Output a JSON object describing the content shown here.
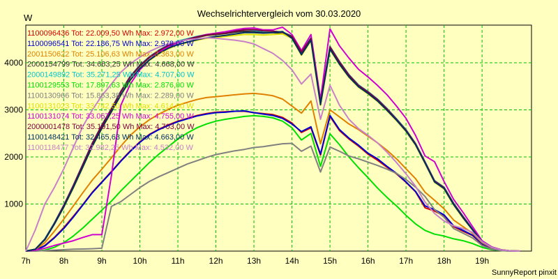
{
  "chart_data": {
    "type": "line",
    "title": "Wechselrichtervergleich vom 30.03.2020",
    "ylabel": "W",
    "xlabel": "",
    "footer": "SunnyReport pinxit",
    "grid": true,
    "legend_position": "top-left",
    "xlim": [
      7,
      20.3
    ],
    "ylim": [
      0,
      4800
    ],
    "x_ticks": [
      7,
      8,
      9,
      10,
      11,
      12,
      13,
      14,
      15,
      16,
      17,
      18,
      19
    ],
    "x_tick_labels": [
      "7h",
      "8h",
      "9h",
      "10h",
      "11h",
      "12h",
      "13h",
      "14h",
      "15h",
      "16h",
      "17h",
      "18h",
      "19h"
    ],
    "y_ticks": [
      1000,
      2000,
      3000,
      4000
    ],
    "x": [
      7,
      7.25,
      7.5,
      7.75,
      8,
      8.25,
      8.5,
      8.75,
      9,
      9.25,
      9.5,
      9.75,
      10,
      10.25,
      10.5,
      10.75,
      11,
      11.25,
      11.5,
      11.75,
      12,
      12.25,
      12.5,
      12.75,
      13,
      13.25,
      13.5,
      13.75,
      14,
      14.25,
      14.5,
      14.75,
      15,
      15.25,
      15.5,
      15.75,
      16,
      16.25,
      16.5,
      16.75,
      17,
      17.25,
      17.5,
      17.75,
      18,
      18.25,
      18.5,
      18.75,
      19,
      19.25,
      19.5,
      19.75,
      20
    ],
    "series": [
      {
        "name": "1100096436",
        "legend": "1100096436 Tot: 22.009,50 Wh Max: 2.972,00 W",
        "color": "#d00000",
        "values": [
          0,
          20,
          120,
          290,
          500,
          740,
          990,
          1250,
          1470,
          1690,
          1920,
          2130,
          2320,
          2480,
          2590,
          2680,
          2760,
          2820,
          2880,
          2920,
          2950,
          2960,
          2970,
          2970,
          2940,
          2920,
          2900,
          2840,
          2720,
          2520,
          2620,
          2040,
          2860,
          2560,
          2380,
          2230,
          2060,
          1930,
          1780,
          1640,
          1460,
          1260,
          920,
          850,
          750,
          520,
          420,
          330,
          150,
          60,
          20,
          5,
          0
        ]
      },
      {
        "name": "1100096541",
        "legend": "1100096541 Tot: 22.186,75 Wh Max: 2.978,00 W",
        "color": "#0000d0",
        "values": [
          0,
          20,
          110,
          280,
          480,
          720,
          980,
          1240,
          1460,
          1680,
          1910,
          2120,
          2310,
          2470,
          2580,
          2670,
          2750,
          2810,
          2870,
          2910,
          2940,
          2950,
          2970,
          2978,
          2940,
          2910,
          2880,
          2820,
          2700,
          2540,
          2640,
          2060,
          2880,
          2580,
          2400,
          2250,
          2080,
          1960,
          1800,
          1650,
          1470,
          1270,
          960,
          880,
          770,
          540,
          440,
          340,
          160,
          60,
          20,
          5,
          0
        ]
      },
      {
        "name": "2001150622",
        "legend": "2001150622 Tot: 25.106,63 Wh Max: 3.363,00 W",
        "color": "#e08000",
        "values": [
          0,
          30,
          180,
          420,
          680,
          960,
          1240,
          1510,
          1740,
          1980,
          2230,
          2460,
          2640,
          2790,
          2910,
          3010,
          3100,
          3160,
          3220,
          3260,
          3280,
          3300,
          3320,
          3340,
          3350,
          3330,
          3300,
          3230,
          3080,
          2930,
          3190,
          2280,
          3000,
          2850,
          2700,
          2580,
          2440,
          2300,
          2140,
          1960,
          1750,
          1540,
          1250,
          1080,
          900,
          660,
          520,
          380,
          180,
          70,
          25,
          5,
          0
        ]
      },
      {
        "name": "2000154799",
        "legend": "2000154799 Tot: 34.663,25 Wh Max: 4.668,00 W",
        "color": "#303030",
        "values": [
          0,
          40,
          250,
          590,
          960,
          1380,
          1830,
          2280,
          2660,
          3010,
          3380,
          3700,
          3930,
          4110,
          4250,
          4360,
          4440,
          4490,
          4540,
          4580,
          4600,
          4620,
          4650,
          4668,
          4660,
          4640,
          4640,
          4620,
          4540,
          4210,
          4500,
          3140,
          4320,
          4000,
          3720,
          3500,
          3360,
          3200,
          3000,
          2790,
          2560,
          2270,
          1880,
          1480,
          1340,
          1000,
          720,
          460,
          200,
          80,
          25,
          5,
          0
        ]
      },
      {
        "name": "2000149892",
        "legend": "2000149892 Tot: 35.271,25 Wh Max: 4.707,00 W",
        "color": "#00c8c8",
        "values": [
          0,
          40,
          260,
          600,
          980,
          1400,
          1850,
          2300,
          2680,
          3030,
          3400,
          3720,
          3950,
          4130,
          4270,
          4380,
          4460,
          4510,
          4560,
          4600,
          4620,
          4640,
          4680,
          4707,
          4690,
          4670,
          4670,
          4650,
          4570,
          4240,
          4530,
          3160,
          4350,
          4030,
          3750,
          3530,
          3390,
          3230,
          3030,
          2810,
          2580,
          2290,
          1900,
          1500,
          1360,
          1020,
          740,
          470,
          210,
          80,
          25,
          5,
          0
        ]
      },
      {
        "name": "1100129553",
        "legend": "1100129553 Tot: 17.897,63 Wh Max: 2.876,00 W",
        "color": "#00e000",
        "values": [
          0,
          0,
          20,
          80,
          180,
          320,
          490,
          680,
          870,
          1060,
          1280,
          1480,
          1680,
          1880,
          2060,
          2220,
          2380,
          2510,
          2620,
          2700,
          2760,
          2800,
          2830,
          2860,
          2876,
          2860,
          2830,
          2760,
          2620,
          2360,
          2500,
          1800,
          2490,
          2260,
          2000,
          1770,
          1560,
          1340,
          1140,
          960,
          760,
          580,
          440,
          360,
          320,
          260,
          220,
          160,
          80,
          30,
          10,
          0,
          0
        ]
      },
      {
        "name": "1100130966",
        "legend": "1100130966 Tot: 15.863,38 Wh Max: 2.289,00 W",
        "color": "#808080",
        "values": [
          0,
          0,
          10,
          20,
          30,
          40,
          45,
          50,
          60,
          950,
          1050,
          1200,
          1350,
          1480,
          1580,
          1670,
          1760,
          1850,
          1920,
          1990,
          2050,
          2090,
          2130,
          2160,
          2200,
          2220,
          2250,
          2280,
          2289,
          2120,
          2230,
          1680,
          2210,
          2120,
          2020,
          1960,
          1890,
          1820,
          1740,
          1650,
          1520,
          1360,
          1160,
          880,
          720,
          480,
          380,
          280,
          120,
          40,
          10,
          0,
          0
        ]
      },
      {
        "name": "1100131023",
        "legend": "1100131023 Tot: 33.742,50 Wh Max: 4.614,00 W",
        "color": "#e0e000",
        "values": [
          0,
          40,
          240,
          570,
          930,
          1340,
          1780,
          2220,
          2600,
          2950,
          3310,
          3630,
          3870,
          4050,
          4190,
          4300,
          4380,
          4430,
          4480,
          4520,
          4540,
          4560,
          4580,
          4600,
          4600,
          4590,
          4600,
          4614,
          4520,
          4160,
          4470,
          3100,
          4280,
          3960,
          3690,
          3480,
          3340,
          3180,
          2980,
          2770,
          2540,
          2250,
          1860,
          1460,
          1320,
          980,
          700,
          450,
          200,
          80,
          25,
          5,
          0
        ]
      },
      {
        "name": "1100131074",
        "legend": "1100131074 Tot: 33.067,25 Wh Max: 4.755,00 W",
        "color": "#d000d0",
        "values": [
          0,
          20,
          60,
          120,
          170,
          220,
          290,
          350,
          350,
          1600,
          3100,
          3550,
          3850,
          4060,
          4220,
          4340,
          4430,
          4500,
          4550,
          4600,
          4630,
          4660,
          4700,
          4730,
          4740,
          4700,
          4700,
          4755,
          4600,
          4260,
          4600,
          3220,
          4720,
          4360,
          4100,
          3860,
          3700,
          3520,
          3320,
          3080,
          2820,
          2460,
          2020,
          1900,
          1480,
          1100,
          820,
          520,
          220,
          90,
          30,
          5,
          0
        ]
      },
      {
        "name": "2000001478",
        "legend": "2000001478 Tot: 35.191,50 Wh Max: 4.703,00 W",
        "color": "#800040",
        "values": [
          0,
          40,
          250,
          590,
          970,
          1390,
          1840,
          2290,
          2670,
          3020,
          3390,
          3710,
          3940,
          4120,
          4260,
          4370,
          4450,
          4500,
          4550,
          4590,
          4610,
          4630,
          4670,
          4700,
          4703,
          4680,
          4670,
          4650,
          4560,
          4230,
          4520,
          3150,
          4340,
          4020,
          3740,
          3520,
          3380,
          3220,
          3020,
          2800,
          2570,
          2280,
          1890,
          1490,
          1350,
          1010,
          730,
          460,
          200,
          80,
          25,
          5,
          0
        ]
      },
      {
        "name": "1100148421",
        "legend": "1100148421 Tot: 32.465,63 Wh Max: 4.663,00 W",
        "color": "#003060",
        "values": [
          0,
          40,
          240,
          570,
          940,
          1350,
          1790,
          2230,
          2610,
          2960,
          3320,
          3640,
          3880,
          4060,
          4200,
          4310,
          4390,
          4440,
          4490,
          4530,
          4560,
          4580,
          4610,
          4640,
          4640,
          4630,
          4640,
          4663,
          4520,
          4170,
          4480,
          3110,
          4290,
          3970,
          3700,
          3490,
          3350,
          3190,
          2990,
          2780,
          2550,
          2260,
          1870,
          1470,
          1330,
          990,
          710,
          450,
          200,
          80,
          25,
          5,
          0
        ]
      },
      {
        "name": "1100118477",
        "legend": "1100118477 Tot: 32.982,25 Wh Max: 4.532,00 W",
        "color": "#c880c8",
        "values": [
          0,
          450,
          1000,
          1350,
          1750,
          2200,
          2650,
          3000,
          3300,
          3550,
          3800,
          3980,
          4120,
          4240,
          4330,
          4400,
          4450,
          4490,
          4510,
          4532,
          4520,
          4500,
          4480,
          4450,
          4400,
          4300,
          4200,
          4050,
          3850,
          3550,
          3760,
          2800,
          3520,
          3100,
          2800,
          2600,
          2460,
          2300,
          2100,
          1880,
          1640,
          1380,
          1040,
          800,
          640,
          540,
          480,
          400,
          200,
          80,
          25,
          5,
          0
        ]
      }
    ]
  }
}
